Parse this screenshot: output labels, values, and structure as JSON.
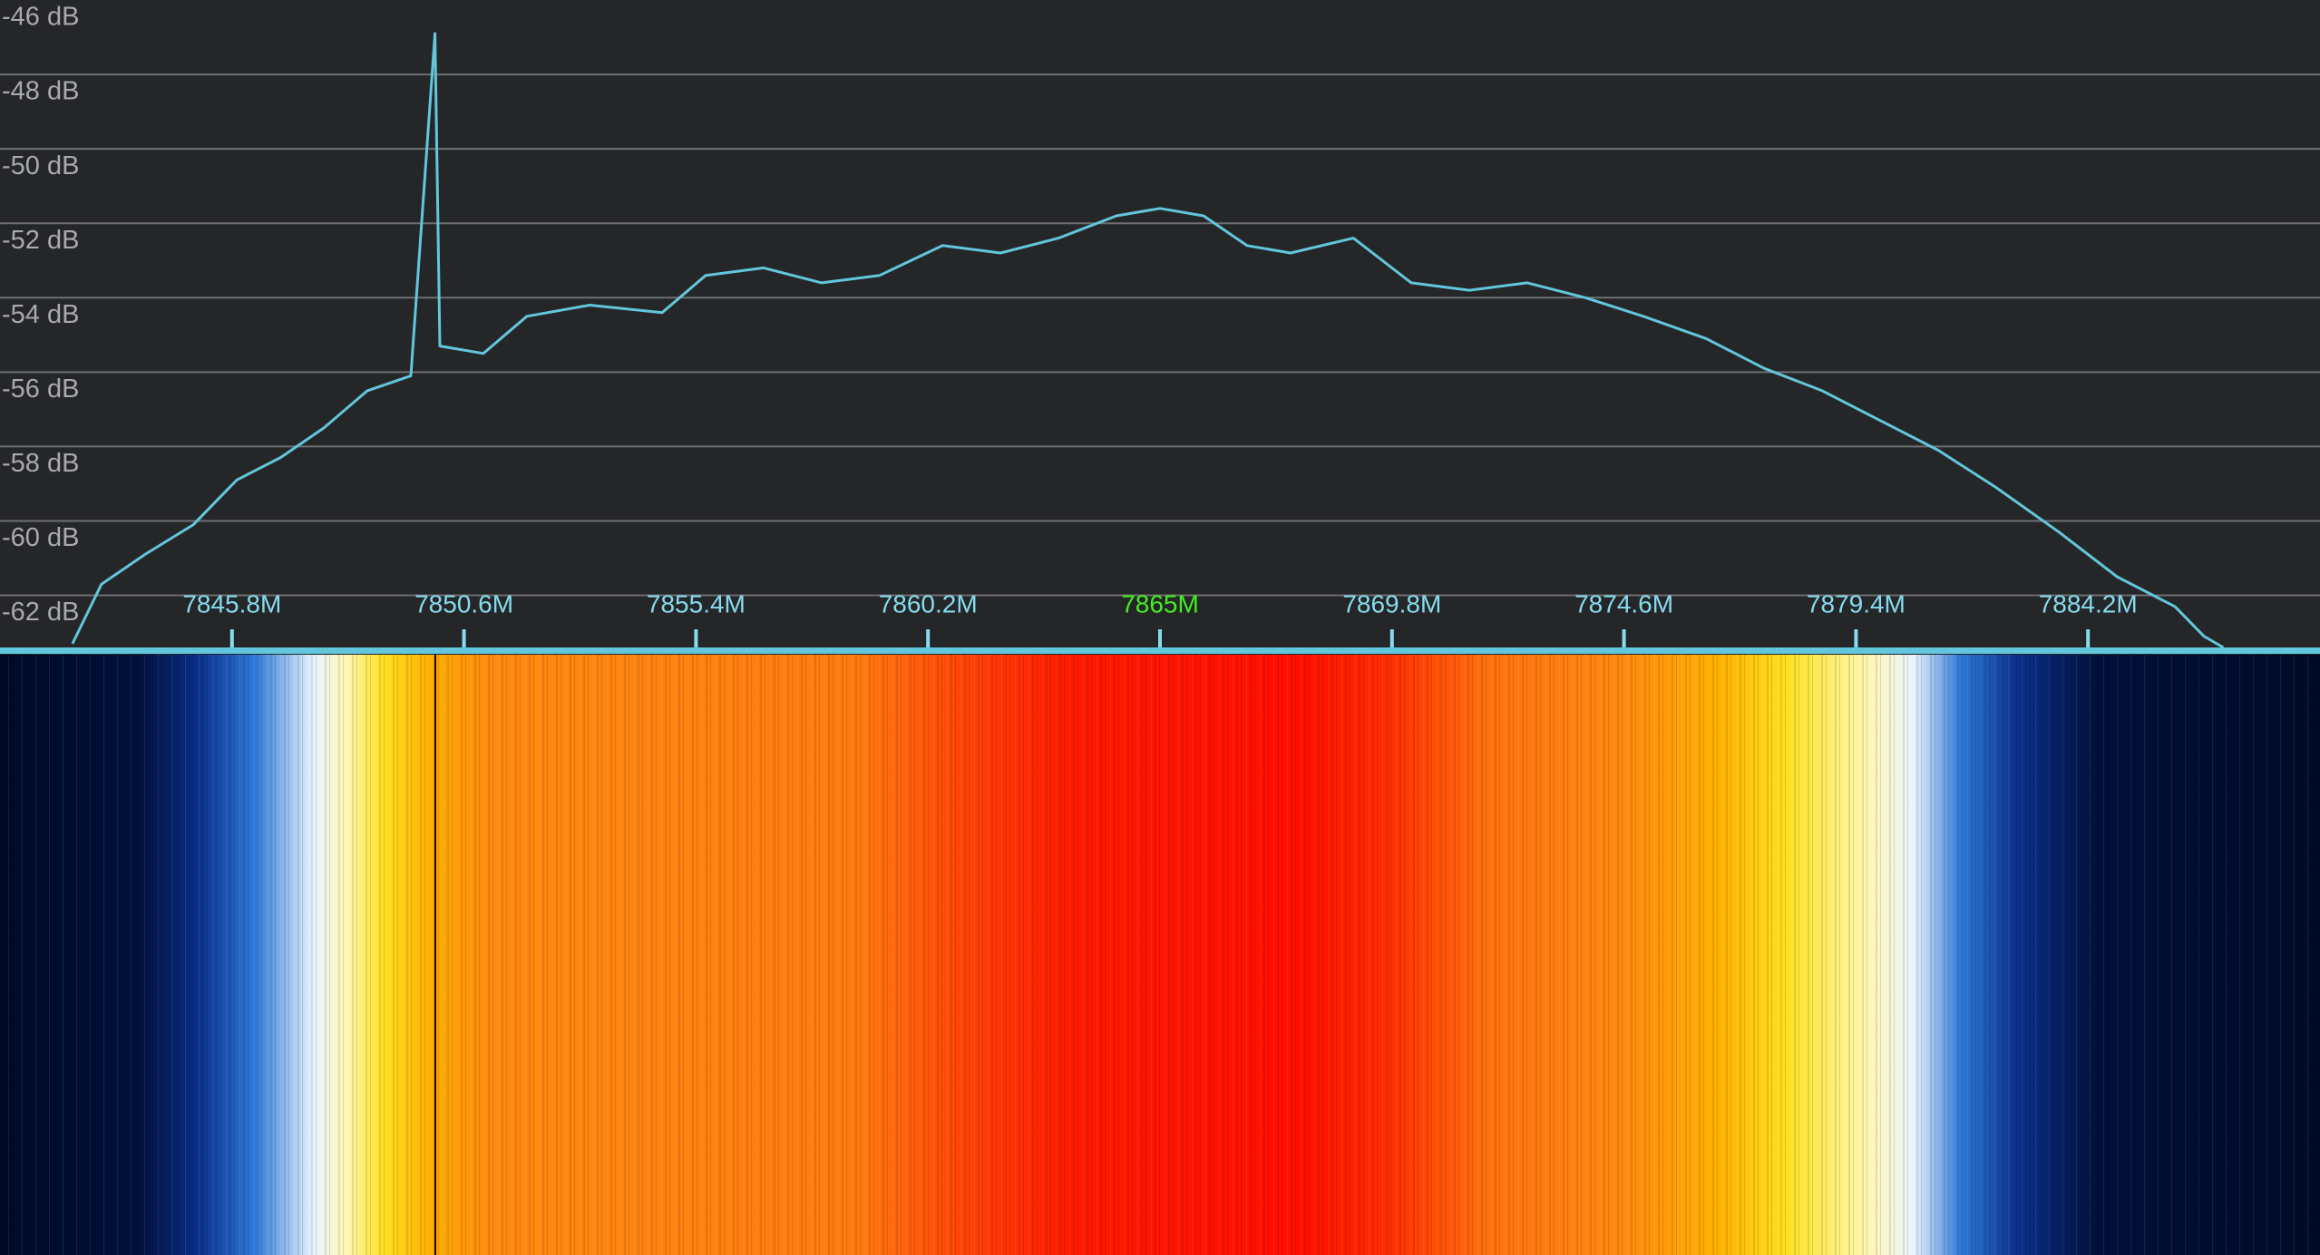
{
  "chart_data": {
    "type": "line",
    "x": [
      7842.5,
      7843.1,
      7844.0,
      7845.0,
      7845.9,
      7846.8,
      7847.7,
      7848.6,
      7849.5,
      7850.0,
      7850.1,
      7851.0,
      7851.9,
      7853.2,
      7854.7,
      7855.6,
      7856.8,
      7858.0,
      7859.2,
      7860.5,
      7861.7,
      7862.9,
      7864.1,
      7865.0,
      7865.9,
      7866.8,
      7867.7,
      7869.0,
      7870.2,
      7871.4,
      7872.6,
      7873.8,
      7875.0,
      7876.3,
      7877.5,
      7878.7,
      7879.9,
      7881.1,
      7882.3,
      7883.6,
      7884.8,
      7886.0,
      7886.6,
      7887.0
    ],
    "values": [
      -63.3,
      -61.7,
      -60.9,
      -60.1,
      -58.9,
      -58.3,
      -57.5,
      -56.5,
      -56.1,
      -46.9,
      -55.3,
      -55.5,
      -54.5,
      -54.2,
      -54.4,
      -53.4,
      -53.2,
      -53.6,
      -53.4,
      -52.6,
      -52.8,
      -52.4,
      -51.8,
      -51.6,
      -51.8,
      -52.6,
      -52.8,
      -52.4,
      -53.6,
      -53.8,
      -53.6,
      -54.0,
      -54.5,
      -55.1,
      -55.9,
      -56.5,
      -57.3,
      -58.1,
      -59.1,
      -60.3,
      -61.5,
      -62.3,
      -63.1,
      -63.4
    ],
    "color": "#62c6dc",
    "xlim": [
      7841,
      7889
    ],
    "ylim": [
      -63.4,
      -46
    ],
    "xticks": [
      {
        "value": 7845.8,
        "label": "7845.8M"
      },
      {
        "value": 7850.6,
        "label": "7850.6M"
      },
      {
        "value": 7855.4,
        "label": "7855.4M"
      },
      {
        "value": 7860.2,
        "label": "7860.2M"
      },
      {
        "value": 7865,
        "label": "7865M"
      },
      {
        "value": 7869.8,
        "label": "7869.8M"
      },
      {
        "value": 7874.6,
        "label": "7874.6M"
      },
      {
        "value": 7879.4,
        "label": "7879.4M"
      },
      {
        "value": 7884.2,
        "label": "7884.2M"
      }
    ],
    "yticks": [
      {
        "value": -46,
        "label": "-46 dB"
      },
      {
        "value": -48,
        "label": "-48 dB"
      },
      {
        "value": -50,
        "label": "-50 dB"
      },
      {
        "value": -52,
        "label": "-52 dB"
      },
      {
        "value": -54,
        "label": "-54 dB"
      },
      {
        "value": -56,
        "label": "-56 dB"
      },
      {
        "value": -58,
        "label": "-58 dB"
      },
      {
        "value": -60,
        "label": "-60 dB"
      },
      {
        "value": -62,
        "label": "-62 dB"
      }
    ],
    "grid": true,
    "center_frequency": 7865,
    "center_color": "#44ee22"
  }
}
